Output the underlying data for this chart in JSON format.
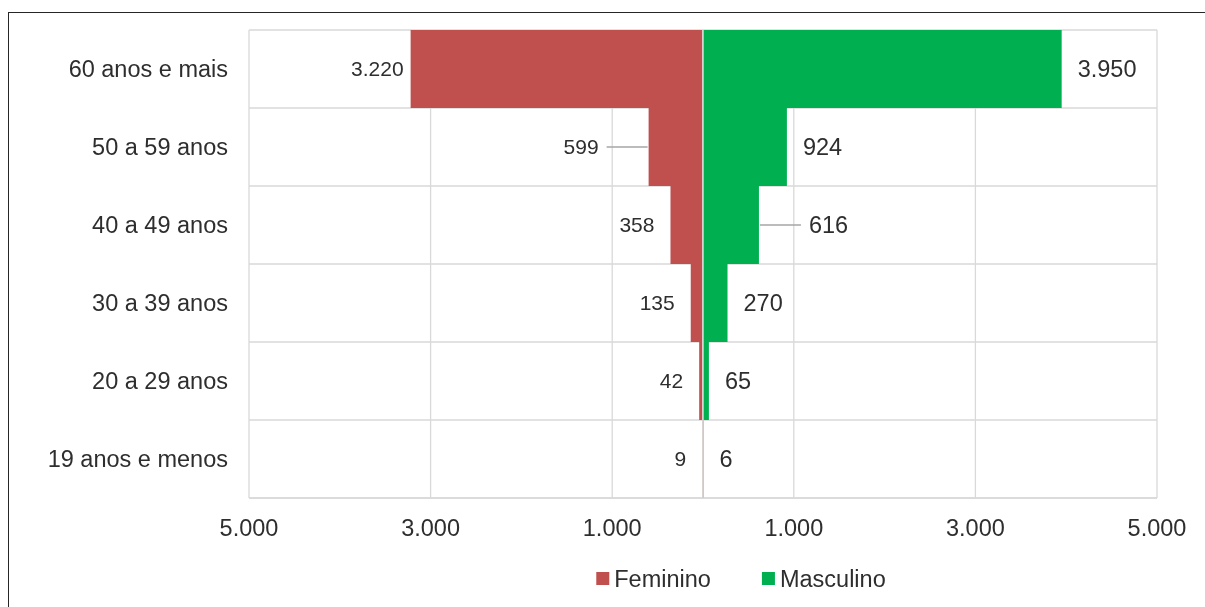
{
  "chart_data": [
    {
      "type": "bar",
      "orientation": "horizontal",
      "categories": [
        "60 anos e mais",
        "50 a 59 anos",
        "40 a 49 anos",
        "30 a 39 anos",
        "20 a 29 anos",
        "19 anos e menos"
      ],
      "series": [
        {
          "name": "Feminino",
          "color": "#c0504d",
          "values": [
            3220,
            599,
            358,
            135,
            42,
            9
          ],
          "value_labels": [
            "3.220",
            "599",
            "358",
            "135",
            "42",
            "9"
          ]
        }
      ],
      "xlim": [
        5000,
        0
      ],
      "xticks": [
        {
          "value": 5000,
          "label": "5.000"
        },
        {
          "value": 3000,
          "label": "3.000"
        },
        {
          "value": 1000,
          "label": "1.000"
        }
      ],
      "grid": true,
      "legend": "bottom"
    },
    {
      "type": "bar",
      "orientation": "horizontal",
      "categories": [
        null,
        null,
        null,
        null,
        null,
        null
      ],
      "series": [
        {
          "name": "Masculino",
          "color": "#00b050",
          "values": [
            3950,
            924,
            616,
            270,
            65,
            6
          ],
          "value_labels": [
            "3.950",
            "924",
            "616",
            "270",
            "65",
            "6"
          ]
        }
      ],
      "xlim": [
        0,
        5000
      ],
      "xticks": [
        {
          "value": 1000,
          "label": "1.000"
        },
        {
          "value": 3000,
          "label": "3.000"
        },
        {
          "value": 5000,
          "label": "5.000"
        }
      ],
      "grid": true,
      "legend": "bottom"
    }
  ]
}
